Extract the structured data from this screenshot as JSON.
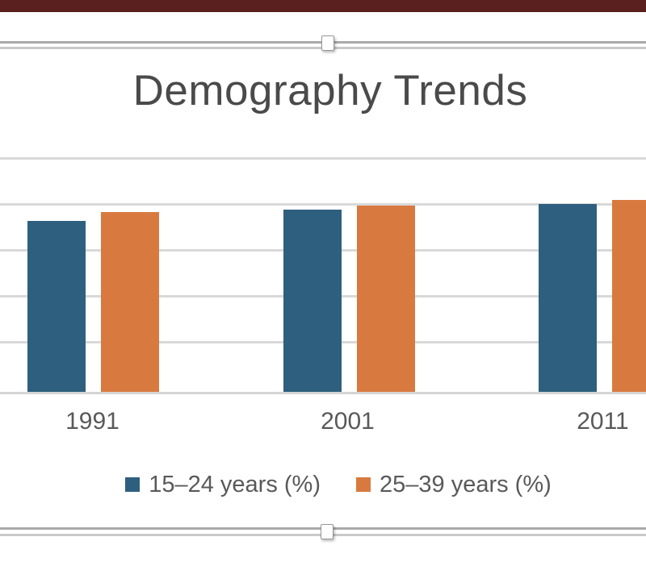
{
  "window": {
    "top_bar_color": "#5A1F1F"
  },
  "selection": {
    "handle_count": 2,
    "handle_positions": [
      "top-center",
      "bottom-center"
    ]
  },
  "chart_data": {
    "type": "bar",
    "title": "Demography Trends",
    "categories": [
      "1991",
      "2001",
      "2011"
    ],
    "series": [
      {
        "name": "15–24 years (%)",
        "color": "#2E5F7E",
        "values": [
          18.6,
          19.8,
          20.4
        ]
      },
      {
        "name": "25–39 years (%)",
        "color": "#D87A40",
        "values": [
          19.5,
          20.2,
          20.8
        ]
      }
    ],
    "ylim": [
      0,
      25
    ],
    "gridline_interval": 5,
    "grid": true,
    "y_axis_labels_visible": false,
    "legend_position": "bottom"
  }
}
